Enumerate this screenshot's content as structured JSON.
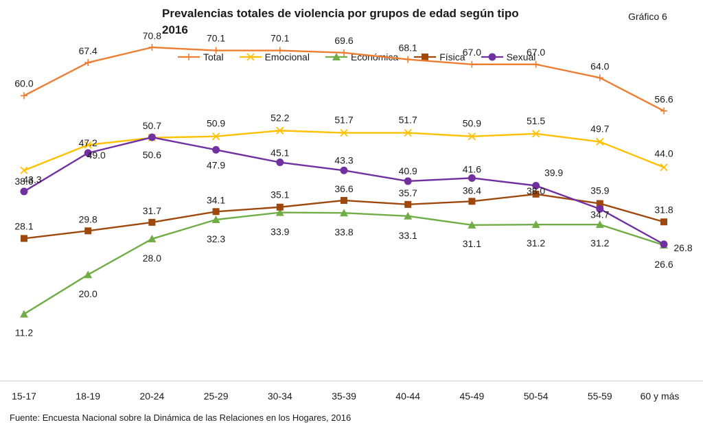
{
  "header": {
    "title_line1": "Prevalencias totales de violencia por grupos de edad según tipo",
    "title_line2": "2016",
    "chart_number": "Gráfico 6"
  },
  "footer": {
    "source": "Fuente: Encuesta Nacional sobre la Dinámica de las Relaciones en los Hogares, 2016"
  },
  "chart_data": {
    "type": "line",
    "title": "Prevalencias totales de violencia por grupos de edad según tipo 2016",
    "xlabel": "",
    "ylabel": "",
    "ylim": [
      0,
      80
    ],
    "grid": false,
    "legend_position": "top",
    "categories": [
      "15-17",
      "18-19",
      "20-24",
      "25-29",
      "30-34",
      "35-39",
      "40-44",
      "45-49",
      "50-54",
      "55-59",
      "60 y más"
    ],
    "series": [
      {
        "name": "Total",
        "color": "#ED7D31",
        "marker": "plus",
        "values": [
          60.0,
          67.4,
          70.8,
          70.1,
          70.1,
          69.6,
          68.1,
          67.0,
          67.0,
          64.0,
          56.6
        ],
        "labels": [
          "60.0",
          "67.4",
          "70.8",
          "70.1",
          "70.1",
          "69.6",
          "68.1",
          "67.0",
          "67.0",
          "64.0",
          "56.6"
        ]
      },
      {
        "name": "Emocional",
        "color": "#FFC000",
        "marker": "x",
        "values": [
          43.3,
          49.0,
          50.6,
          50.9,
          52.2,
          51.7,
          51.7,
          50.9,
          51.5,
          49.7,
          44.0
        ],
        "labels": [
          "43.3",
          "49.0",
          "50.6",
          "50.9",
          "52.2",
          "51.7",
          "51.7",
          "50.9",
          "51.5",
          "49.7",
          "44.0"
        ]
      },
      {
        "name": "Económica",
        "color": "#70AD47",
        "marker": "triangle",
        "values": [
          11.2,
          20.0,
          28.0,
          32.3,
          33.9,
          33.8,
          33.1,
          31.1,
          31.2,
          31.2,
          26.6
        ],
        "labels": [
          "11.2",
          "20.0",
          "28.0",
          "32.3",
          "33.9",
          "33.8",
          "33.1",
          "31.1",
          "31.2",
          "31.2",
          "26.6"
        ]
      },
      {
        "name": "Física",
        "color": "#9E480E",
        "marker": "square",
        "values": [
          28.1,
          29.8,
          31.7,
          34.1,
          35.1,
          36.6,
          35.7,
          36.4,
          38.0,
          35.9,
          31.8
        ],
        "labels": [
          "28.1",
          "29.8",
          "31.7",
          "34.1",
          "35.1",
          "36.6",
          "35.7",
          "36.4",
          "38.0",
          "35.9",
          "31.8"
        ]
      },
      {
        "name": "Sexual",
        "color": "#7030A0",
        "marker": "circle",
        "values": [
          38.6,
          47.2,
          50.7,
          47.9,
          45.1,
          43.3,
          40.9,
          41.6,
          39.9,
          34.7,
          26.8
        ],
        "labels": [
          "38.6",
          "47.2",
          "50.7",
          "47.9",
          "45.1",
          "43.3",
          "40.9",
          "41.6",
          "39.9",
          "34.7",
          "26.8"
        ]
      }
    ]
  }
}
